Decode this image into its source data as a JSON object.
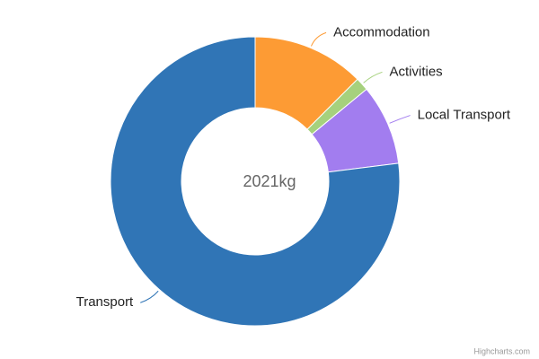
{
  "chart_data": {
    "type": "donut",
    "center_label": "2021kg",
    "credits": "Highcharts.com",
    "series": [
      {
        "name": "Accommodation",
        "color": "#fd9b34",
        "values": [
          253
        ]
      },
      {
        "name": "Activities",
        "color": "#a6d17d",
        "values": [
          30
        ]
      },
      {
        "name": "Local Transport",
        "color": "#a27def",
        "values": [
          182
        ]
      },
      {
        "name": "Transport",
        "color": "#3075b6",
        "values": [
          1556
        ]
      }
    ]
  }
}
